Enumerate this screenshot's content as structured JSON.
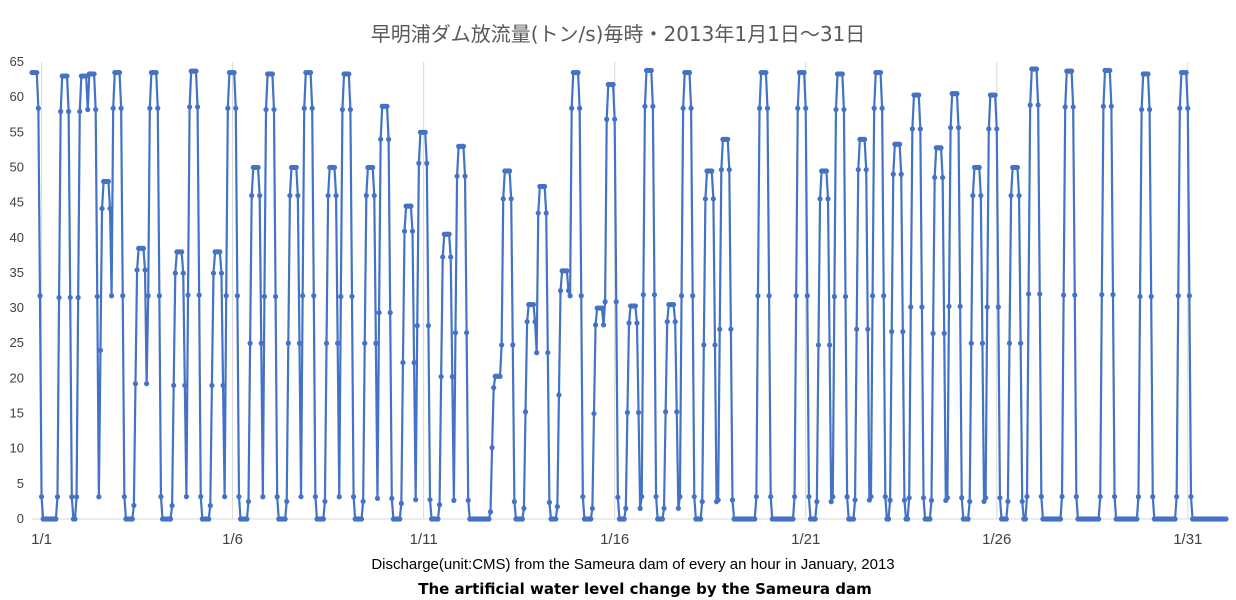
{
  "chart_data": {
    "type": "line",
    "title": "早明浦ダム放流量(トン/s)毎時・2013年1月1日～31日",
    "xlabel": "Discharge(unit:CMS) from the Sameura dam of every an hour in  January, 2013",
    "ylabel": "",
    "caption": "The artificial water level change by the Sameura dam",
    "ylim": [
      0,
      65
    ],
    "yticks": [
      0,
      5,
      10,
      15,
      20,
      25,
      30,
      35,
      40,
      45,
      50,
      55,
      60,
      65
    ],
    "xlim_day": [
      0.75,
      32.0
    ],
    "xtick_labels": [
      "1/1",
      "1/6",
      "1/11",
      "1/16",
      "1/21",
      "1/26",
      "1/31"
    ],
    "xtick_days": [
      1,
      6,
      11,
      16,
      21,
      26,
      31
    ],
    "grid": "vertical-only",
    "marker": "circle",
    "series_color": "#4472c4",
    "series": [
      {
        "start_date": "2013-01-01",
        "step": "1 hour",
        "peaks": [
          {
            "day": 0.85,
            "value": 63.5
          },
          {
            "day": 1.62,
            "value": 63.0
          },
          {
            "day": 2.12,
            "value": 63.0
          },
          {
            "day": 2.32,
            "value": 63.3
          },
          {
            "day": 2.7,
            "value": 48.0
          },
          {
            "day": 3.02,
            "value": 63.5
          },
          {
            "day": 3.62,
            "value": 38.5
          },
          {
            "day": 3.97,
            "value": 63.5
          },
          {
            "day": 4.62,
            "value": 38.0
          },
          {
            "day": 5.02,
            "value": 63.7
          },
          {
            "day": 5.62,
            "value": 38.0
          },
          {
            "day": 6.02,
            "value": 63.5
          },
          {
            "day": 6.62,
            "value": 50.0
          },
          {
            "day": 7.02,
            "value": 63.3
          },
          {
            "day": 7.62,
            "value": 50.0
          },
          {
            "day": 8.02,
            "value": 63.5
          },
          {
            "day": 8.62,
            "value": 50.0
          },
          {
            "day": 9.02,
            "value": 63.3
          },
          {
            "day": 9.62,
            "value": 50.0
          },
          {
            "day": 10.02,
            "value": 58.7
          },
          {
            "day": 10.62,
            "value": 44.5
          },
          {
            "day": 11.02,
            "value": 55.0
          },
          {
            "day": 11.62,
            "value": 40.5
          },
          {
            "day": 12.02,
            "value": 53.0
          },
          {
            "day": 12.95,
            "value": 20.3
          },
          {
            "day": 13.22,
            "value": 49.5
          },
          {
            "day": 13.82,
            "value": 30.5
          },
          {
            "day": 14.12,
            "value": 47.3
          },
          {
            "day": 14.72,
            "value": 35.3
          },
          {
            "day": 15.02,
            "value": 63.5
          },
          {
            "day": 15.62,
            "value": 30.0
          },
          {
            "day": 15.92,
            "value": 61.8
          },
          {
            "day": 16.52,
            "value": 30.3
          },
          {
            "day": 16.92,
            "value": 63.8
          },
          {
            "day": 17.52,
            "value": 30.5
          },
          {
            "day": 17.92,
            "value": 63.5
          },
          {
            "day": 18.52,
            "value": 49.5
          },
          {
            "day": 18.92,
            "value": 54.0
          },
          {
            "day": 19.92,
            "value": 63.5
          },
          {
            "day": 20.92,
            "value": 63.5
          },
          {
            "day": 21.52,
            "value": 49.5
          },
          {
            "day": 21.92,
            "value": 63.3
          },
          {
            "day": 22.52,
            "value": 54.0
          },
          {
            "day": 22.92,
            "value": 63.5
          },
          {
            "day": 23.42,
            "value": 53.3
          },
          {
            "day": 23.92,
            "value": 60.3
          },
          {
            "day": 24.52,
            "value": 52.8
          },
          {
            "day": 24.92,
            "value": 60.5
          },
          {
            "day": 25.52,
            "value": 50.0
          },
          {
            "day": 25.92,
            "value": 60.3
          },
          {
            "day": 26.52,
            "value": 50.0
          },
          {
            "day": 27.02,
            "value": 64.0
          },
          {
            "day": 27.92,
            "value": 63.7
          },
          {
            "day": 28.92,
            "value": 63.8
          },
          {
            "day": 29.92,
            "value": 63.3
          },
          {
            "day": 30.92,
            "value": 63.5
          }
        ]
      }
    ]
  }
}
